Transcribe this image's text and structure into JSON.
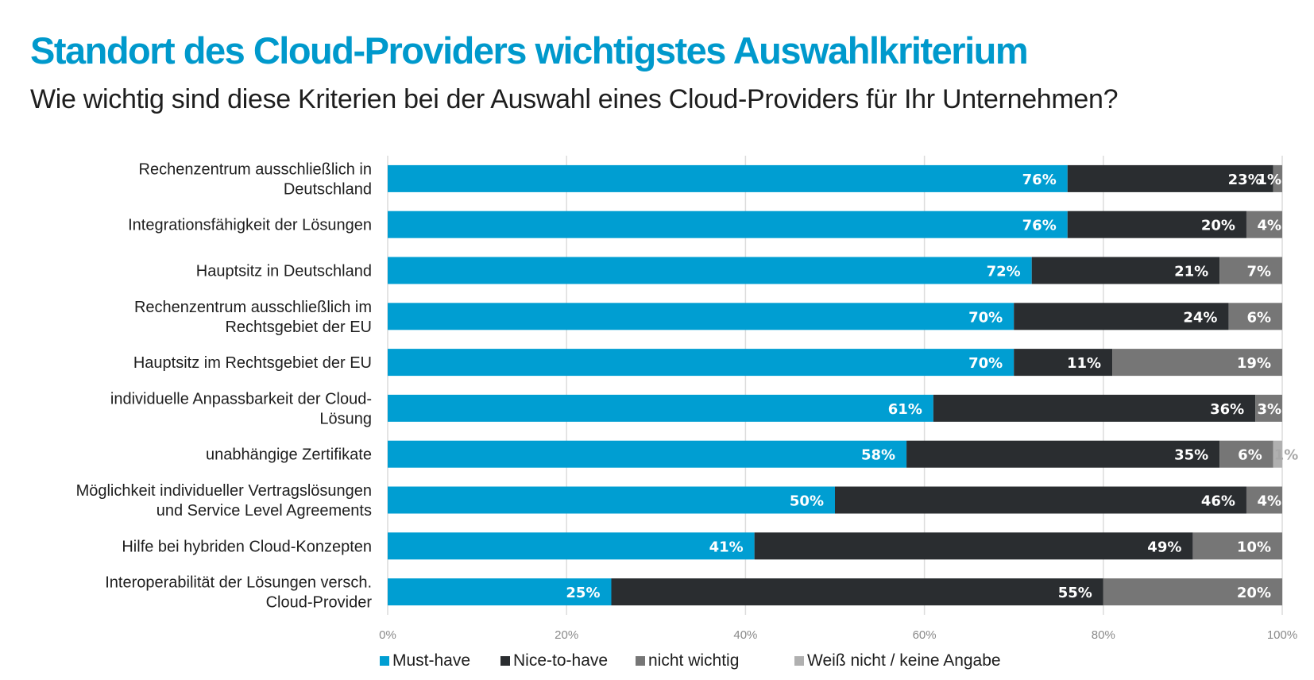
{
  "title": "Standort des Cloud-Providers wichtigstes Auswahlkriterium",
  "subtitle": "Wie wichtig sind diese Kriterien bei der Auswahl eines Cloud-Providers für Ihr Unternehmen?",
  "colors": {
    "Must-have": "#009ed2",
    "Nice-to-have": "#2a2d30",
    "nicht wichtig": "#767676",
    "Weiß nicht / keine Angabe": "#b0b0b0",
    "title": "#0099cc"
  },
  "chart_data": {
    "type": "bar",
    "orientation": "horizontal",
    "stacked": true,
    "title": "Standort des Cloud-Providers wichtigstes Auswahlkriterium",
    "subtitle": "Wie wichtig sind diese Kriterien bei der Auswahl eines Cloud-Providers für Ihr Unternehmen?",
    "xlabel": "",
    "ylabel": "",
    "xlim": [
      0,
      100
    ],
    "x_ticks": [
      "0%",
      "20%",
      "40%",
      "60%",
      "80%",
      "100%"
    ],
    "grid": "vertical",
    "legend_position": "bottom",
    "categories": [
      [
        "Rechenzentrum ausschließlich in",
        "Deutschland"
      ],
      [
        "Integrationsfähigkeit der Lösungen"
      ],
      [
        "Hauptsitz in Deutschland"
      ],
      [
        "Rechenzentrum ausschließlich im",
        "Rechtsgebiet der EU"
      ],
      [
        "Hauptsitz im Rechtsgebiet der EU"
      ],
      [
        "individuelle Anpassbarkeit der Cloud-",
        "Lösung"
      ],
      [
        "unabhängige Zertifikate"
      ],
      [
        "Möglichkeit individueller Vertragslösungen",
        "und Service Level Agreements"
      ],
      [
        "Hilfe bei hybriden Cloud-Konzepten"
      ],
      [
        "Interoperabilität der Lösungen versch.",
        "Cloud-Provider"
      ]
    ],
    "series": [
      {
        "name": "Must-have",
        "values": [
          76,
          76,
          72,
          70,
          70,
          61,
          58,
          50,
          41,
          25
        ]
      },
      {
        "name": "Nice-to-have",
        "values": [
          23,
          20,
          21,
          24,
          11,
          36,
          35,
          46,
          49,
          55
        ]
      },
      {
        "name": "nicht wichtig",
        "values": [
          1,
          4,
          7,
          6,
          19,
          3,
          6,
          4,
          10,
          20
        ]
      },
      {
        "name": "Weiß nicht / keine Angabe",
        "values": [
          0,
          0,
          0,
          0,
          0,
          0,
          1,
          0,
          0,
          0
        ]
      }
    ],
    "value_suffix": "%"
  },
  "legend": [
    {
      "label": "Must-have"
    },
    {
      "label": "Nice-to-have"
    },
    {
      "label": "nicht wichtig"
    },
    {
      "label": "Weiß nicht / keine Angabe"
    }
  ]
}
